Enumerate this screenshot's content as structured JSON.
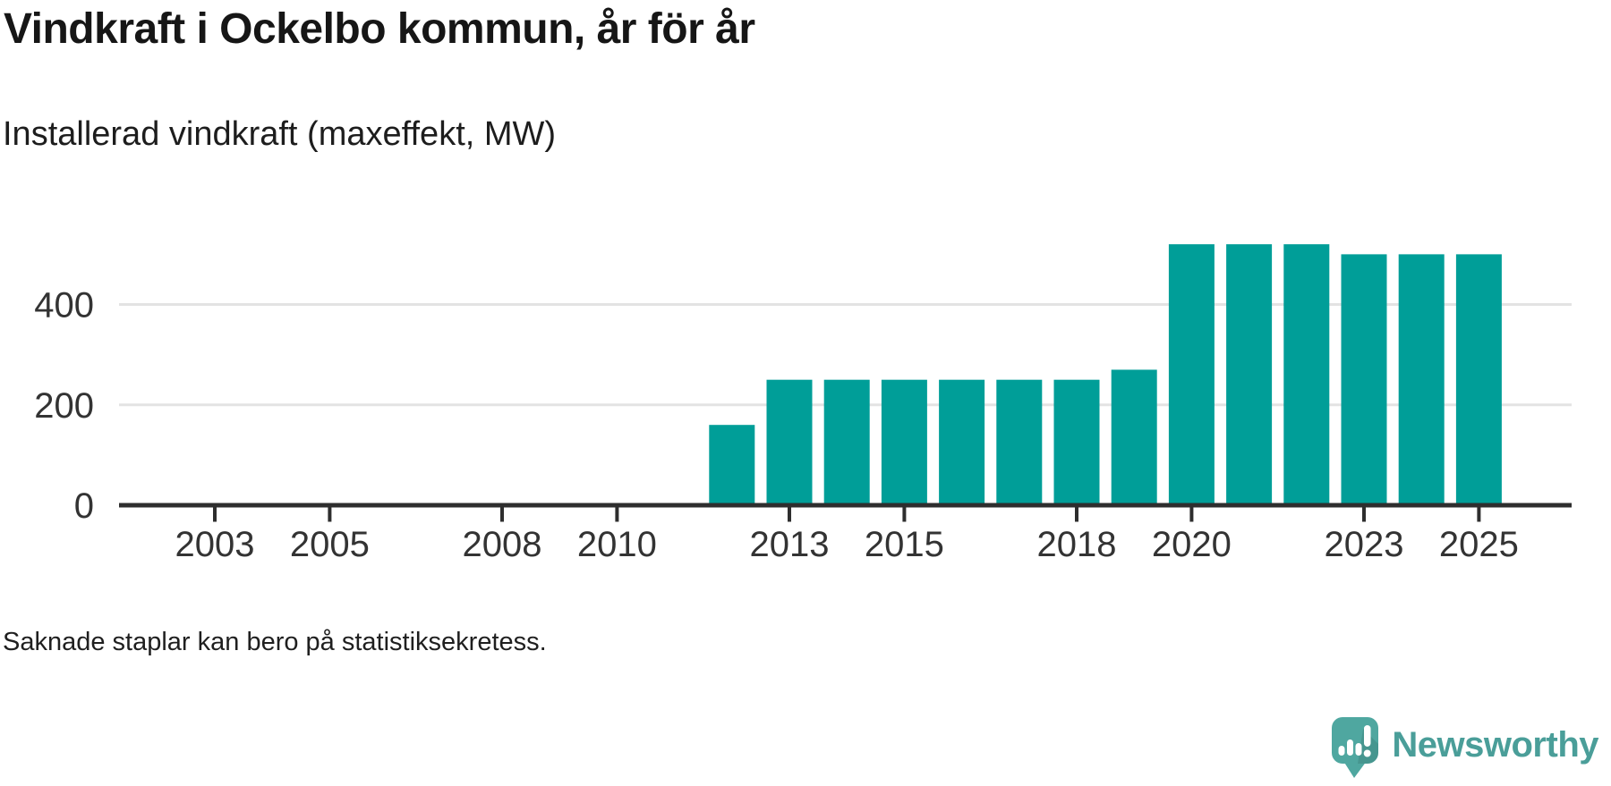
{
  "header": {
    "title": "Vindkraft i Ockelbo kommun, år för år",
    "subtitle": "Installerad vindkraft (maxeffekt, MW)"
  },
  "footer": {
    "note": "Saknade staplar kan bero på statistiksekretess.",
    "brand_name": "Newsworthy",
    "brand_icon": "newsworthy-speech-bubble-chart-icon"
  },
  "colors": {
    "bar": "#009E98",
    "grid": "#e3e3e3",
    "axis": "#2e2e2e",
    "tick_text": "#333333",
    "logo_teal": "#4FA7A0",
    "logo_shadow_rgba": "rgba(0,0,0,0.10)",
    "wordmark": "#4A9E99"
  },
  "chart_data": {
    "type": "bar",
    "title": "Vindkraft i Ockelbo kommun, år för år",
    "ylabel": "Installerad vindkraft (maxeffekt, MW)",
    "unit": "MW",
    "categories": [
      2012,
      2013,
      2014,
      2015,
      2016,
      2017,
      2018,
      2019,
      2020,
      2021,
      2022,
      2023,
      2024,
      2025
    ],
    "values": [
      160,
      250,
      250,
      250,
      250,
      250,
      250,
      270,
      520,
      520,
      520,
      500,
      500,
      500
    ],
    "missing_years": [
      2002,
      2003,
      2004,
      2005,
      2006,
      2007,
      2008,
      2009,
      2010,
      2011
    ],
    "x_tick_labels": [
      "2003",
      "2005",
      "2008",
      "2010",
      "2013",
      "2015",
      "2018",
      "2020",
      "2023",
      "2025"
    ],
    "y_ticks": [
      0,
      200,
      400
    ],
    "y_gridlines": [
      200,
      400
    ],
    "xlim": [
      2001.4,
      2026.4
    ],
    "ylim": [
      0,
      560
    ],
    "grid": "horizontal-only",
    "legend": "none",
    "annotation": "Saknade staplar kan bero på statistiksekretess."
  }
}
